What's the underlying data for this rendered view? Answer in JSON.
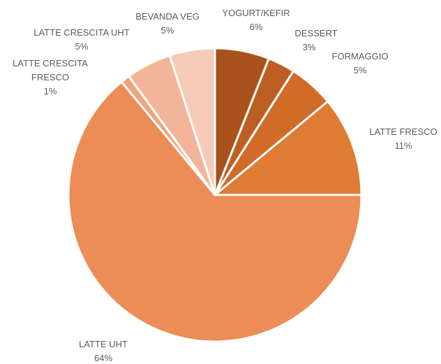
{
  "chart_data": {
    "type": "pie",
    "title": "",
    "slices": [
      {
        "label": "YOGURT/KEFIR",
        "value": 6,
        "value_label": "6%",
        "color": "#a9521c"
      },
      {
        "label": "DESSERT",
        "value": 3,
        "value_label": "3%",
        "color": "#bd5f22"
      },
      {
        "label": "FORMAGGIO",
        "value": 5,
        "value_label": "5%",
        "color": "#d06b28"
      },
      {
        "label": "LATTE FRESCO",
        "value": 11,
        "value_label": "11%",
        "color": "#e07b33"
      },
      {
        "label": "LATTE UHT",
        "value": 64,
        "value_label": "64%",
        "color": "#ec8c56"
      },
      {
        "label": "LATTE CRESCITA FRESCO",
        "value": 1,
        "value_label": "1%",
        "color": "#f0a47c"
      },
      {
        "label": "LATTE CRESCITA UHT",
        "value": 5,
        "value_label": "5%",
        "color": "#f3b599"
      },
      {
        "label": "BEVANDA VEG",
        "value": 5,
        "value_label": "5%",
        "color": "#f6cab8"
      }
    ],
    "legend": "none",
    "start_angle_deg": 0,
    "direction": "clockwise"
  }
}
